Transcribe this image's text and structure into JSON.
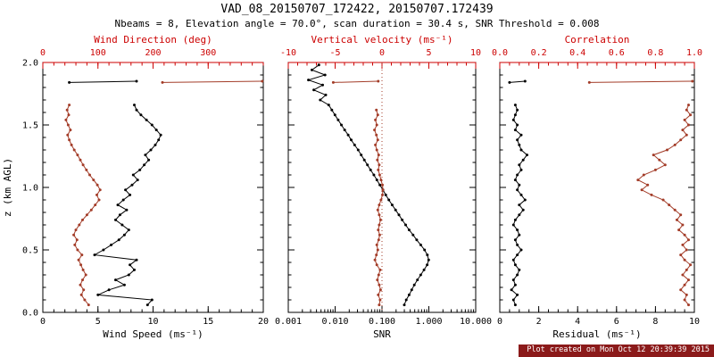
{
  "header": {
    "title": "VAD_08_20150707_172422, 20150707.172439",
    "subtitle": "Nbeams = 8, Elevation angle = 70.0°, scan duration = 30.4 s, SNR Threshold = 0.008"
  },
  "footer": {
    "text": "Plot created on Mon Oct 12 20:39:39 2015",
    "bg": "#8b1a1a",
    "fg": "#ffffff"
  },
  "colors": {
    "axis_red": "#cc0000",
    "data_red": "#a33c28",
    "black": "#000000",
    "background": "#ffffff"
  },
  "y_axis": {
    "label": "z (km AGL)",
    "lim": [
      0,
      2
    ],
    "ticks": [
      0,
      0.5,
      1,
      1.5,
      2
    ],
    "tick_labels": [
      "0.0",
      "0.5",
      "1.0",
      "1.5",
      "2.0"
    ],
    "minor_step": 0.1
  },
  "chart_data": [
    {
      "type": "line",
      "panel": "wind",
      "bottom_axis": {
        "label": "Wind Speed (ms⁻¹)",
        "scale": "linear",
        "lim": [
          0,
          20
        ],
        "ticks": [
          0,
          5,
          10,
          15,
          20
        ],
        "tick_labels": [
          "0",
          "5",
          "10",
          "15",
          "20"
        ],
        "minor_step": 1,
        "color": "black"
      },
      "top_axis": {
        "label": "Wind Direction (deg)",
        "scale": "linear",
        "lim": [
          0,
          400
        ],
        "ticks": [
          0,
          100,
          200,
          300
        ],
        "tick_labels": [
          "0",
          "100",
          "200",
          "300"
        ],
        "minor_step": 20,
        "color": "red"
      },
      "series": [
        {
          "name": "wind-speed",
          "axis": "bottom",
          "color": "black",
          "z": [
            0.06,
            0.1,
            0.14,
            0.18,
            0.22,
            0.26,
            0.3,
            0.34,
            0.38,
            0.42,
            0.46,
            0.5,
            0.54,
            0.58,
            0.62,
            0.66,
            0.7,
            0.74,
            0.78,
            0.82,
            0.86,
            0.9,
            0.94,
            0.98,
            1.02,
            1.06,
            1.1,
            1.14,
            1.18,
            1.22,
            1.26,
            1.3,
            1.34,
            1.38,
            1.42,
            1.46,
            1.5,
            1.54,
            1.58,
            1.62,
            1.66
          ],
          "v": [
            9.5,
            9.9,
            5.0,
            6.0,
            7.4,
            6.6,
            7.8,
            8.3,
            7.9,
            8.5,
            4.7,
            5.5,
            6.2,
            6.9,
            7.4,
            7.8,
            7.2,
            6.6,
            7.0,
            7.6,
            6.8,
            7.3,
            7.9,
            7.5,
            8.1,
            8.6,
            8.2,
            8.8,
            9.2,
            9.6,
            9.3,
            9.8,
            10.2,
            10.5,
            10.7,
            10.3,
            9.9,
            9.4,
            8.9,
            8.5,
            8.3
          ]
        },
        {
          "name": "wind-speed-top",
          "axis": "bottom",
          "color": "black",
          "z": [
            1.84,
            1.85
          ],
          "v": [
            2.4,
            8.5
          ]
        },
        {
          "name": "wind-direction",
          "axis": "top",
          "color": "red",
          "z": [
            0.06,
            0.1,
            0.14,
            0.18,
            0.22,
            0.26,
            0.3,
            0.34,
            0.38,
            0.42,
            0.46,
            0.5,
            0.54,
            0.58,
            0.62,
            0.66,
            0.7,
            0.74,
            0.78,
            0.82,
            0.86,
            0.9,
            0.94,
            0.98,
            1.02,
            1.06,
            1.1,
            1.14,
            1.18,
            1.22,
            1.26,
            1.3,
            1.34,
            1.38,
            1.42,
            1.46,
            1.5,
            1.54,
            1.58,
            1.62,
            1.66
          ],
          "v": [
            83,
            76,
            70,
            74,
            68,
            72,
            78,
            73,
            69,
            65,
            71,
            63,
            58,
            62,
            56,
            60,
            66,
            72,
            80,
            88,
            95,
            102,
            98,
            104,
            99,
            92,
            85,
            79,
            73,
            68,
            63,
            57,
            52,
            48,
            45,
            50,
            46,
            42,
            47,
            44,
            48
          ]
        },
        {
          "name": "wind-direction-top",
          "axis": "top",
          "color": "red",
          "z": [
            1.84,
            1.85
          ],
          "v": [
            217,
            398
          ]
        }
      ]
    },
    {
      "type": "line",
      "panel": "snr",
      "bottom_axis": {
        "label": "SNR",
        "scale": "log",
        "lim": [
          0.001,
          10
        ],
        "ticks": [
          0.001,
          0.01,
          0.1,
          1,
          10
        ],
        "tick_labels": [
          "0.001",
          "0.010",
          "0.100",
          "1.000",
          "10.000"
        ],
        "color": "black"
      },
      "top_axis": {
        "label": "Vertical velocity (ms⁻¹)",
        "scale": "linear",
        "lim": [
          -10,
          10
        ],
        "ticks": [
          -10,
          -5,
          0,
          5,
          10
        ],
        "tick_labels": [
          "-10",
          "-5",
          "0",
          "5",
          "10"
        ],
        "minor_step": 1,
        "color": "red"
      },
      "ref_line": {
        "axis": "top",
        "value": 0,
        "style": "dotted",
        "color": "red"
      },
      "series": [
        {
          "name": "snr",
          "axis": "bottom",
          "color": "black",
          "z": [
            0.06,
            0.1,
            0.14,
            0.18,
            0.22,
            0.26,
            0.3,
            0.34,
            0.38,
            0.42,
            0.46,
            0.5,
            0.54,
            0.58,
            0.62,
            0.66,
            0.7,
            0.74,
            0.78,
            0.82,
            0.86,
            0.9,
            0.94,
            0.98,
            1.02,
            1.06,
            1.1,
            1.14,
            1.18,
            1.22,
            1.26,
            1.3,
            1.34,
            1.38,
            1.42,
            1.46,
            1.5,
            1.54,
            1.58,
            1.62,
            1.66,
            1.7,
            1.74,
            1.78,
            1.82,
            1.86,
            1.9,
            1.94,
            1.98
          ],
          "v": [
            0.3,
            0.33,
            0.38,
            0.43,
            0.49,
            0.57,
            0.67,
            0.79,
            0.92,
            0.99,
            0.93,
            0.81,
            0.67,
            0.55,
            0.46,
            0.38,
            0.32,
            0.27,
            0.23,
            0.195,
            0.165,
            0.14,
            0.12,
            0.105,
            0.09,
            0.078,
            0.067,
            0.057,
            0.049,
            0.042,
            0.036,
            0.031,
            0.026,
            0.022,
            0.019,
            0.016,
            0.0136,
            0.0116,
            0.0099,
            0.0085,
            0.0073,
            0.0048,
            0.0063,
            0.0035,
            0.0054,
            0.0027,
            0.0061,
            0.0032,
            0.0045
          ]
        },
        {
          "name": "vertical-velocity",
          "axis": "top",
          "color": "red",
          "z": [
            0.06,
            0.1,
            0.14,
            0.18,
            0.22,
            0.26,
            0.3,
            0.34,
            0.38,
            0.42,
            0.46,
            0.5,
            0.54,
            0.58,
            0.62,
            0.66,
            0.7,
            0.74,
            0.78,
            0.82,
            0.86,
            0.9,
            0.94,
            0.98,
            1.02,
            1.06,
            1.1,
            1.14,
            1.18,
            1.22,
            1.26,
            1.3,
            1.34,
            1.38,
            1.42,
            1.46,
            1.5,
            1.54,
            1.58,
            1.62
          ],
          "v": [
            -0.3,
            -0.2,
            -0.4,
            -0.15,
            -0.3,
            -0.5,
            -0.35,
            -0.2,
            -0.55,
            -0.75,
            -0.6,
            -0.45,
            -0.55,
            -0.35,
            -0.25,
            -0.4,
            -0.3,
            -0.15,
            -0.3,
            -0.45,
            -0.3,
            -0.1,
            0.05,
            0.1,
            0.05,
            -0.1,
            -0.25,
            -0.4,
            -0.3,
            -0.5,
            -0.35,
            -0.55,
            -0.7,
            -0.45,
            -0.6,
            -0.8,
            -0.55,
            -0.7,
            -0.45,
            -0.6
          ]
        },
        {
          "name": "vertical-velocity-top",
          "axis": "top",
          "color": "red",
          "z": [
            1.84,
            1.85
          ],
          "v": [
            -5.2,
            -0.4
          ]
        }
      ]
    },
    {
      "type": "line",
      "panel": "residual",
      "bottom_axis": {
        "label": "Residual (ms⁻¹)",
        "scale": "linear",
        "lim": [
          0,
          10
        ],
        "ticks": [
          0,
          2,
          4,
          6,
          8,
          10
        ],
        "tick_labels": [
          "0",
          "2",
          "4",
          "6",
          "8",
          "10"
        ],
        "minor_step": 0.5,
        "color": "black"
      },
      "top_axis": {
        "label": "Correlation",
        "scale": "linear",
        "lim": [
          0,
          1
        ],
        "ticks": [
          0,
          0.2,
          0.4,
          0.6,
          0.8,
          1.0
        ],
        "tick_labels": [
          "0.0",
          "0.2",
          "0.4",
          "0.6",
          "0.8",
          "1.0"
        ],
        "minor_step": 0.05,
        "color": "red"
      },
      "series": [
        {
          "name": "residual",
          "axis": "bottom",
          "color": "black",
          "z": [
            0.06,
            0.1,
            0.14,
            0.18,
            0.22,
            0.26,
            0.3,
            0.34,
            0.38,
            0.42,
            0.46,
            0.5,
            0.54,
            0.58,
            0.62,
            0.66,
            0.7,
            0.74,
            0.78,
            0.82,
            0.86,
            0.9,
            0.94,
            0.98,
            1.02,
            1.06,
            1.1,
            1.14,
            1.18,
            1.22,
            1.26,
            1.3,
            1.34,
            1.38,
            1.42,
            1.46,
            1.5,
            1.54,
            1.58,
            1.62,
            1.66
          ],
          "v": [
            0.8,
            0.7,
            0.9,
            0.6,
            0.8,
            0.7,
            0.9,
            1.0,
            0.8,
            0.7,
            0.9,
            1.1,
            0.9,
            0.8,
            1.0,
            0.9,
            0.7,
            0.8,
            1.0,
            1.2,
            1.0,
            1.3,
            1.1,
            0.9,
            1.0,
            0.8,
            0.9,
            1.1,
            1.0,
            1.2,
            1.4,
            1.1,
            1.0,
            0.9,
            1.1,
            0.8,
            0.9,
            0.7,
            0.8,
            0.9,
            0.8
          ]
        },
        {
          "name": "residual-top",
          "axis": "bottom",
          "color": "black",
          "z": [
            1.84,
            1.85
          ],
          "v": [
            0.5,
            1.3
          ]
        },
        {
          "name": "correlation",
          "axis": "top",
          "color": "red",
          "z": [
            0.06,
            0.1,
            0.14,
            0.18,
            0.22,
            0.26,
            0.3,
            0.34,
            0.38,
            0.42,
            0.46,
            0.5,
            0.54,
            0.58,
            0.62,
            0.66,
            0.7,
            0.74,
            0.78,
            0.82,
            0.86,
            0.9,
            0.94,
            0.98,
            1.02,
            1.06,
            1.1,
            1.14,
            1.18,
            1.22,
            1.26,
            1.3,
            1.34,
            1.38,
            1.42,
            1.46,
            1.5,
            1.54,
            1.58,
            1.62,
            1.66
          ],
          "v": [
            0.97,
            0.95,
            0.96,
            0.93,
            0.95,
            0.97,
            0.94,
            0.96,
            0.98,
            0.95,
            0.93,
            0.96,
            0.94,
            0.97,
            0.95,
            0.92,
            0.94,
            0.91,
            0.93,
            0.9,
            0.87,
            0.84,
            0.78,
            0.73,
            0.76,
            0.71,
            0.74,
            0.8,
            0.85,
            0.82,
            0.79,
            0.86,
            0.9,
            0.93,
            0.96,
            0.94,
            0.97,
            0.95,
            0.98,
            0.96,
            0.97
          ]
        },
        {
          "name": "correlation-top",
          "axis": "top",
          "color": "red",
          "z": [
            1.84,
            1.85
          ],
          "v": [
            0.46,
            0.99
          ]
        }
      ]
    }
  ]
}
